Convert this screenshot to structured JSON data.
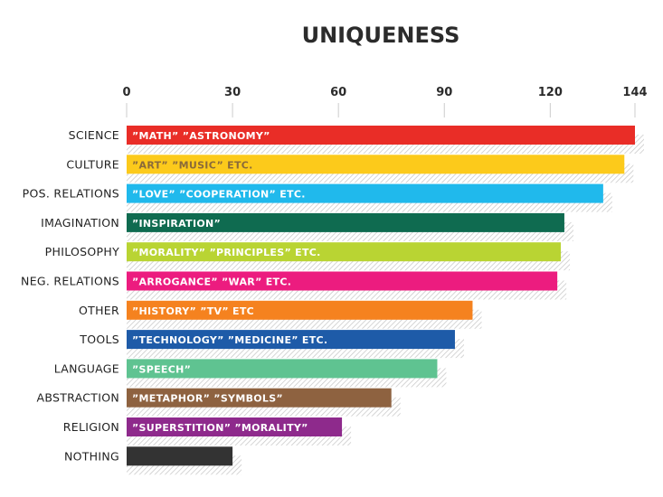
{
  "chart_data": {
    "type": "bar",
    "orientation": "horizontal",
    "title": "UNIQUENESS",
    "xlim": [
      0,
      144
    ],
    "xticks": [
      0,
      30,
      60,
      90,
      120,
      144
    ],
    "grid": true,
    "categories": [
      "SCIENCE",
      "CULTURE",
      "POS. RELATIONS",
      "IMAGINATION",
      "PHILOSOPHY",
      "NEG. RELATIONS",
      "OTHER",
      "TOOLS",
      "LANGUAGE",
      "ABSTRACTION",
      "RELIGION",
      "NOTHING"
    ],
    "values": [
      144,
      141,
      135,
      124,
      123,
      122,
      98,
      93,
      88,
      75,
      61,
      30
    ],
    "bar_labels": [
      "”MATH” ”ASTRONOMY”",
      "”ART” ”MUSIC” ETC.",
      "”LOVE” ”COOPERATION” ETC.",
      "”INSPIRATION”",
      "”MORALITY” ”PRINCIPLES” ETC.",
      "”ARROGANCE” ”WAR” ETC.",
      "”HISTORY” ”TV” ETC",
      "”TECHNOLOGY” ”MEDICINE” ETC.",
      "”SPEECH”",
      "”METAPHOR” ”SYMBOLS”",
      "”SUPERSTITION” ”MORALITY”",
      ""
    ],
    "colors": [
      "#e92d27",
      "#fcca1b",
      "#20b9ec",
      "#0f6b50",
      "#b9d433",
      "#ec1c7f",
      "#f5821f",
      "#1e5ba8",
      "#5fc391",
      "#8e6240",
      "#8e2a8c",
      "#333333"
    ],
    "label_colors": [
      "#ffffff",
      "#8a6a3a",
      "#ffffff",
      "#ffffff",
      "#ffffff",
      "#ffffff",
      "#ffffff",
      "#ffffff",
      "#ffffff",
      "#ffffff",
      "#ffffff",
      "#ffffff"
    ]
  }
}
